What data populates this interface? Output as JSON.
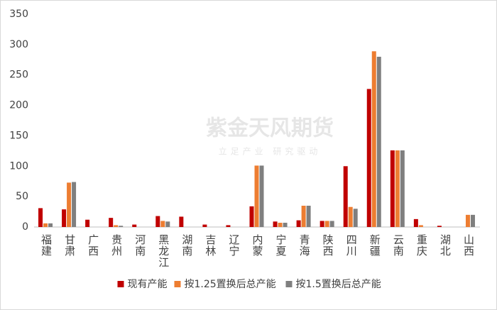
{
  "chart_data": {
    "type": "bar",
    "categories": [
      "福建",
      "甘肃",
      "广西",
      "贵州",
      "河南",
      "黑龙江",
      "湖南",
      "吉林",
      "辽宁",
      "内蒙",
      "宁夏",
      "青海",
      "陕西",
      "四川",
      "新疆",
      "云南",
      "重庆",
      "湖北",
      "山西"
    ],
    "series": [
      {
        "name": "现有产能",
        "color": "#c00000",
        "values": [
          31,
          29,
          12,
          15,
          4,
          18,
          17,
          4,
          3,
          34,
          9,
          11,
          10,
          100,
          227,
          126,
          13,
          2,
          0
        ]
      },
      {
        "name": "按1.25置换后总产能",
        "color": "#ed7d31",
        "values": [
          6,
          73,
          0,
          3,
          0,
          10,
          0,
          0,
          0,
          101,
          7,
          35,
          10,
          33,
          289,
          126,
          3,
          0,
          20
        ]
      },
      {
        "name": "按1.5置换后总产能",
        "color": "#7f7f7f",
        "values": [
          6,
          74,
          0,
          2,
          0,
          9,
          0,
          0,
          0,
          101,
          7,
          35,
          10,
          30,
          280,
          126,
          0,
          0,
          20
        ]
      }
    ],
    "ylim": [
      0,
      350
    ],
    "yticks": [
      0,
      50,
      100,
      150,
      200,
      250,
      300,
      350
    ],
    "grid": false,
    "legend": "bottom",
    "watermark": {
      "brand": "紫金天风期货",
      "slogan": "立足产业 研究驱动"
    }
  }
}
